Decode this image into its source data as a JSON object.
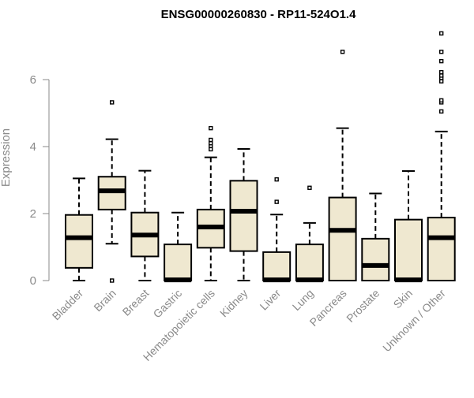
{
  "chart_data": {
    "type": "box",
    "title": "ENSG00000260830 - RP11-524O1.4",
    "xlabel": "",
    "ylabel": "Expression",
    "ylim": [
      0,
      7.4
    ],
    "yticks": [
      0,
      2,
      4,
      6
    ],
    "grid": false,
    "box_fill": "#EFE8D0",
    "categories": [
      "Bladder",
      "Brain",
      "Breast",
      "Gastric",
      "Hematopoietic cells",
      "Kidney",
      "Liver",
      "Lung",
      "Pancreas",
      "Prostate",
      "Skin",
      "Unknown / Other"
    ],
    "boxes": [
      {
        "label": "Bladder",
        "min": 0.0,
        "q1": 0.38,
        "median": 1.28,
        "q3": 1.96,
        "max": 3.05,
        "outliers": []
      },
      {
        "label": "Brain",
        "min": 1.1,
        "q1": 2.12,
        "median": 2.68,
        "q3": 3.1,
        "max": 4.22,
        "outliers": [
          5.32,
          0.0
        ]
      },
      {
        "label": "Breast",
        "min": 0.0,
        "q1": 0.72,
        "median": 1.36,
        "q3": 2.03,
        "max": 3.28,
        "outliers": []
      },
      {
        "label": "Gastric",
        "min": 0.0,
        "q1": 0.0,
        "median": 0.02,
        "q3": 1.08,
        "max": 2.03,
        "outliers": []
      },
      {
        "label": "Hematopoietic cells",
        "min": 0.0,
        "q1": 0.98,
        "median": 1.6,
        "q3": 2.12,
        "max": 3.68,
        "outliers": [
          3.92,
          4.02,
          4.1,
          4.2,
          4.55
        ]
      },
      {
        "label": "Kidney",
        "min": 0.0,
        "q1": 0.88,
        "median": 2.07,
        "q3": 2.98,
        "max": 3.93,
        "outliers": []
      },
      {
        "label": "Liver",
        "min": 0.0,
        "q1": 0.0,
        "median": 0.02,
        "q3": 0.85,
        "max": 1.97,
        "outliers": [
          2.35,
          3.02
        ]
      },
      {
        "label": "Lung",
        "min": 0.0,
        "q1": 0.0,
        "median": 0.02,
        "q3": 1.08,
        "max": 1.72,
        "outliers": [
          2.77
        ]
      },
      {
        "label": "Pancreas",
        "min": 0.0,
        "q1": 0.0,
        "median": 1.5,
        "q3": 2.48,
        "max": 4.55,
        "outliers": [
          6.83
        ]
      },
      {
        "label": "Prostate",
        "min": 0.0,
        "q1": 0.0,
        "median": 0.45,
        "q3": 1.25,
        "max": 2.6,
        "outliers": []
      },
      {
        "label": "Skin",
        "min": 0.0,
        "q1": 0.0,
        "median": 0.02,
        "q3": 1.82,
        "max": 3.27,
        "outliers": []
      },
      {
        "label": "Unknown / Other",
        "min": 0.0,
        "q1": 0.0,
        "median": 1.28,
        "q3": 1.88,
        "max": 4.45,
        "outliers": [
          5.05,
          5.32,
          5.38,
          5.95,
          6.05,
          6.12,
          6.22,
          6.55,
          6.83,
          7.38
        ]
      }
    ]
  }
}
